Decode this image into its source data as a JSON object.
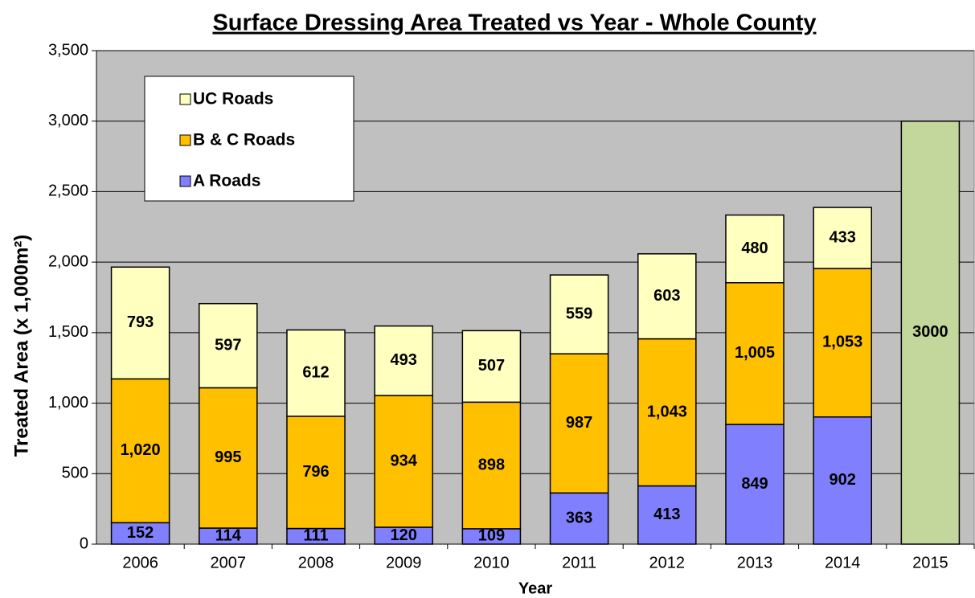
{
  "chart_data": {
    "type": "stacked_bar",
    "title": "Surface Dressing Area Treated vs Year - Whole County",
    "x_label": "Year",
    "y_label": "Treated Area (x 1,000m²)",
    "categories": [
      "2006",
      "2007",
      "2008",
      "2009",
      "2010",
      "2011",
      "2012",
      "2013",
      "2014",
      "2015"
    ],
    "series": [
      {
        "name": "A Roads",
        "color": "#8080ff",
        "values": [
          152,
          114,
          111,
          120,
          109,
          363,
          413,
          849,
          902,
          null
        ]
      },
      {
        "name": "B & C Roads",
        "color": "#ffc000",
        "values": [
          1020,
          995,
          796,
          934,
          898,
          987,
          1043,
          1005,
          1053,
          null
        ],
        "value_labels": [
          "1,020",
          "995",
          "796",
          "934",
          "898",
          "987",
          "1,043",
          "1,005",
          "1,053",
          null
        ]
      },
      {
        "name": "UC Roads",
        "color": "#ffffc0",
        "values": [
          793,
          597,
          612,
          493,
          507,
          559,
          603,
          480,
          433,
          null
        ]
      },
      {
        "color": "#c3d69b",
        "values": [
          null,
          null,
          null,
          null,
          null,
          null,
          null,
          null,
          null,
          3000
        ]
      }
    ],
    "ylim": [
      0,
      3500
    ],
    "yticks": [
      0,
      500,
      {
        "value": 1000,
        "label": "1,000"
      },
      {
        "value": 1500,
        "label": "1,500"
      },
      {
        "value": 2000,
        "label": "2,000"
      },
      {
        "value": 2500,
        "label": "2,500"
      },
      {
        "value": 3000,
        "label": "3,000"
      },
      {
        "value": 3500,
        "label": "3,500"
      }
    ],
    "grid": true,
    "legend_position": "upper left"
  }
}
